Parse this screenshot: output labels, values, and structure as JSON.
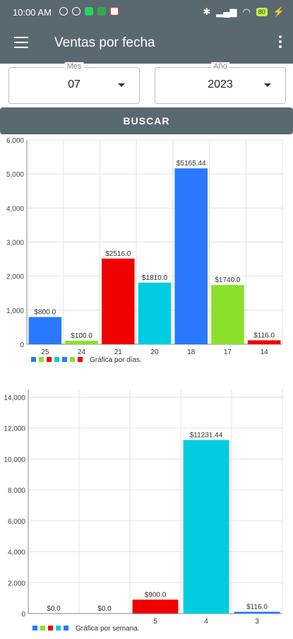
{
  "status_bar": {
    "time": "10:00 AM",
    "battery": "80"
  },
  "app_bar": {
    "title": "Ventas por fecha"
  },
  "filters": {
    "month_label": "Mes",
    "month_value": "07",
    "year_label": "Año",
    "year_value": "2023",
    "search_button": "BUSCAR"
  },
  "chart_data": [
    {
      "type": "bar",
      "categories": [
        "25",
        "24",
        "21",
        "20",
        "18",
        "17",
        "14"
      ],
      "values": [
        800.0,
        100.0,
        2516.0,
        1810.0,
        5165.44,
        1740.0,
        116.0
      ],
      "value_labels": [
        "$800.0",
        "$100.0",
        "$2516.0",
        "$1810.0",
        "$5165.44",
        "$1740.0",
        "$116.0"
      ],
      "colors": [
        "#2979ff",
        "#8be02a",
        "#f00000",
        "#00cde0",
        "#2979ff",
        "#8be02a",
        "#f00000"
      ],
      "ylim": [
        0,
        6000
      ],
      "yticks": [
        0,
        1000,
        2000,
        3000,
        4000,
        5000,
        6000
      ],
      "ytick_labels": [
        "0",
        "1,000",
        "2,000",
        "3,000",
        "4,000",
        "5,000",
        "6,000"
      ],
      "legend_label": "Gráfica por días.",
      "legend_colors": [
        "#2979ff",
        "#8be02a",
        "#f00000",
        "#00cde0",
        "#2979ff",
        "#8be02a",
        "#f00000"
      ],
      "grid": true
    },
    {
      "type": "bar",
      "categories": [
        "",
        "",
        "5",
        "4",
        "3"
      ],
      "values": [
        0.0,
        0.0,
        900.0,
        11231.44,
        116.0
      ],
      "value_labels": [
        "$0.0",
        "$0.0",
        "$900.0",
        "$11231.44",
        "$116.0"
      ],
      "colors": [
        "#2979ff",
        "#8be02a",
        "#f00000",
        "#00cde0",
        "#2979ff"
      ],
      "ylim": [
        0,
        14500
      ],
      "yticks": [
        0,
        2000,
        4000,
        6000,
        8000,
        10000,
        12000,
        14000
      ],
      "ytick_labels": [
        "0",
        "2,000",
        "4,000",
        "6,000",
        "8,000",
        "10,000",
        "12,000",
        "14,000"
      ],
      "legend_label": "Gráfica por semana.",
      "legend_colors": [
        "#2979ff",
        "#8be02a",
        "#f00000",
        "#00cde0",
        "#2979ff"
      ],
      "grid": true
    }
  ]
}
